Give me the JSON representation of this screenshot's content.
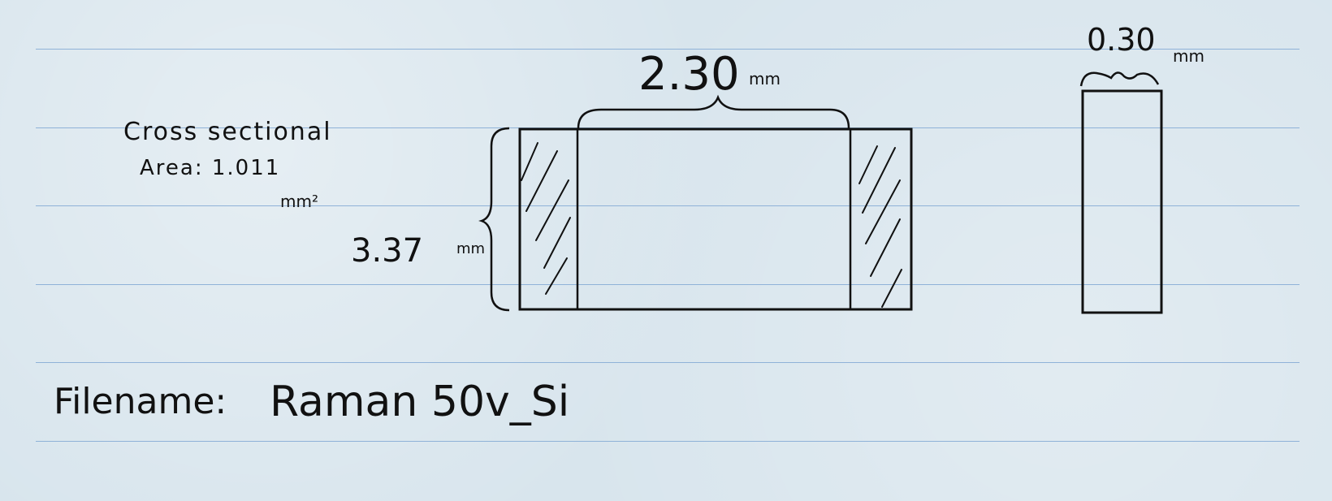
{
  "note": {
    "area_line1": "Cross sectional",
    "area_line2": "Area: 1.011",
    "area_unit": "mm²",
    "width_value": "2.30",
    "width_unit": "mm",
    "height_value": "3.37",
    "height_unit": "mm",
    "thickness_value": "0.30",
    "thickness_unit": "mm",
    "filename_label": "Filename:",
    "filename_value": "Raman 50v_Si"
  },
  "colors": {
    "paper": "#d8e5ed",
    "rule_line": "#8fb2d8",
    "ink": "#111111"
  }
}
